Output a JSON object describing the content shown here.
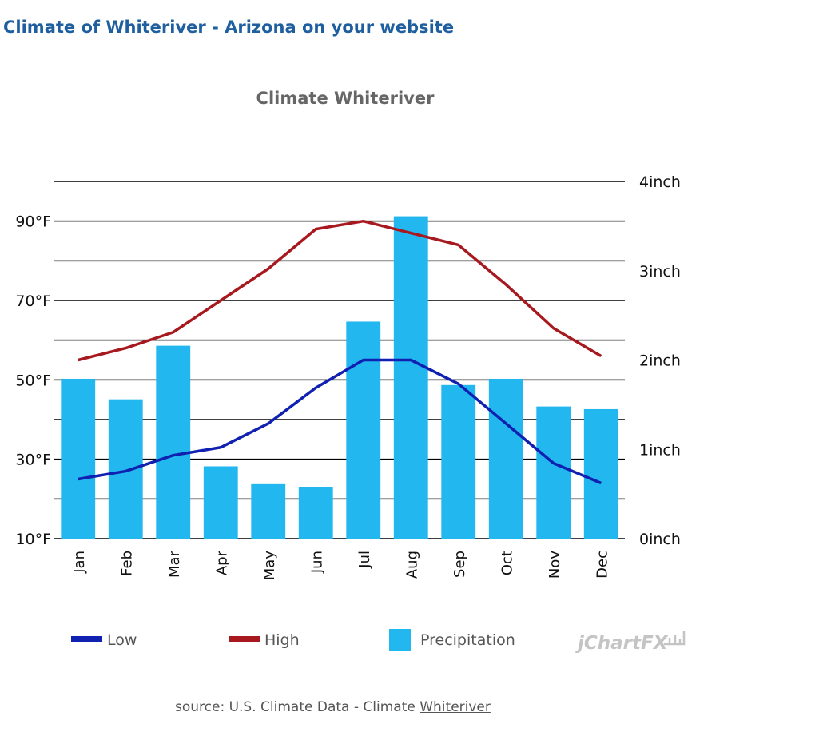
{
  "heading": "Climate of Whiteriver - Arizona on your website",
  "source": {
    "prefix": "source: U.S. Climate Data - Climate ",
    "link_text": "Whiteriver"
  },
  "branding": {
    "logo_text": "jChartFX"
  },
  "colors": {
    "heading": "#1f5f9f",
    "low": "#1020b0",
    "high": "#a8181f",
    "precipitation": "#22b7ee",
    "grid": "#000000"
  },
  "chart_data": {
    "type": "bar",
    "title": "Climate Whiteriver",
    "categories": [
      "Jan",
      "Feb",
      "Mar",
      "Apr",
      "May",
      "Jun",
      "Jul",
      "Aug",
      "Sep",
      "Oct",
      "Nov",
      "Dec"
    ],
    "left_axis": {
      "min": 10,
      "max": 100,
      "ticks": [
        10,
        30,
        50,
        70,
        90
      ],
      "unit": "°F"
    },
    "right_axis": {
      "min": 0,
      "max": 4,
      "ticks": [
        0,
        1,
        2,
        3,
        4
      ],
      "unit": "inch"
    },
    "grid": true,
    "legend_position": "bottom",
    "series": [
      {
        "name": "Low",
        "type": "line",
        "axis": "left",
        "values": [
          25,
          27,
          31,
          33,
          39,
          48,
          55,
          55,
          49,
          39,
          29,
          24
        ]
      },
      {
        "name": "High",
        "type": "line",
        "axis": "left",
        "values": [
          55,
          58,
          62,
          70,
          78,
          88,
          90,
          87,
          84,
          74,
          63,
          56
        ]
      },
      {
        "name": "Precipitation",
        "type": "bar",
        "axis": "right",
        "values": [
          1.79,
          1.56,
          2.16,
          0.81,
          0.61,
          0.58,
          2.43,
          3.61,
          1.72,
          1.79,
          1.48,
          1.45
        ]
      }
    ]
  }
}
